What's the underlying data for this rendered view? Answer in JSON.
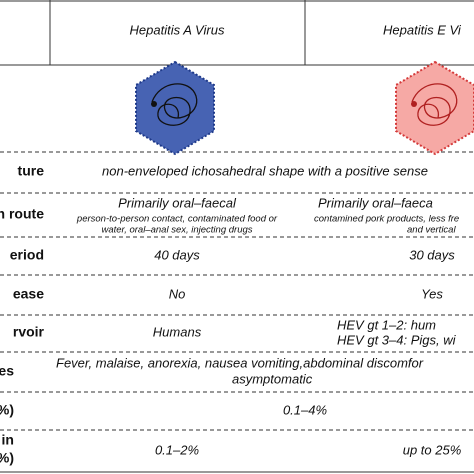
{
  "header": {
    "columns": [
      "Hepatitis A Virus",
      "Hepatitis E Vi"
    ]
  },
  "rows": [
    {
      "label": "ture",
      "merged": "non-enveloped ichosahedral shape with a positive sense"
    },
    {
      "label": "n route",
      "cells": [
        {
          "main": "Primarily oral–faecal",
          "detail": [
            "person-to-person contact, contaminated food or",
            "water, oral–anal sex, injecting drugs"
          ]
        },
        {
          "main": "Primarily oral–faeca",
          "detail": [
            "contamined pork products, less fre",
            "and vertical"
          ]
        }
      ]
    },
    {
      "label": "eriod",
      "cells": [
        "40 days",
        "30 days"
      ]
    },
    {
      "label": "ease",
      "cells": [
        "No",
        "Yes"
      ]
    },
    {
      "label": "rvoir",
      "cells": [
        [
          "Humans"
        ],
        [
          "HEV gt 1–2: hum",
          "HEV gt 3–4: Pigs, wi"
        ]
      ]
    },
    {
      "label": "es",
      "merged": [
        "Fever, malaise, anorexia, nausea vomiting,abdominal discomfor",
        "asymptomatic"
      ]
    },
    {
      "label": "%)",
      "merged": "0.1–4%"
    },
    {
      "label": [
        "in",
        "%)"
      ],
      "cells": [
        "0.1–2%",
        "up to 25%"
      ]
    }
  ]
}
